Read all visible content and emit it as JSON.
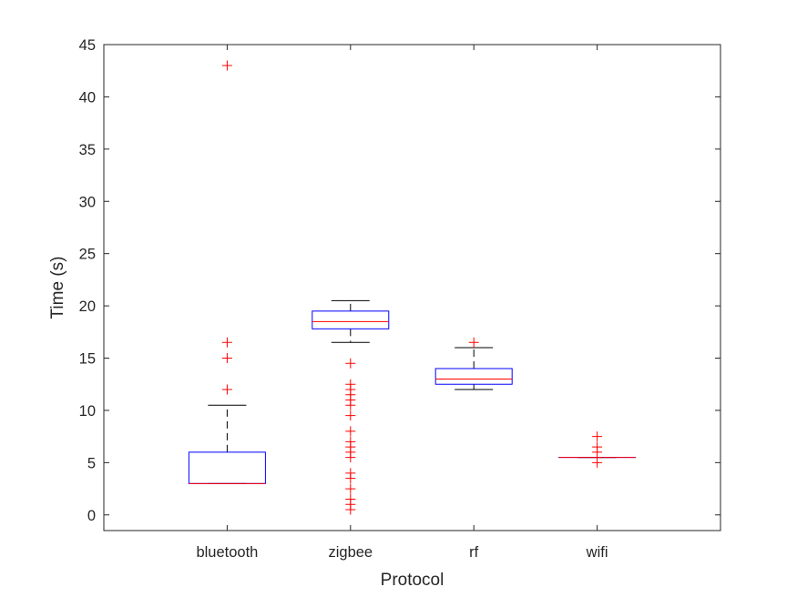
{
  "chart_data": {
    "type": "boxplot",
    "title": "",
    "xlabel": "Protocol",
    "ylabel": "Time (s)",
    "ylim": [
      -1.5,
      45
    ],
    "yticks": [
      0,
      5,
      10,
      15,
      20,
      25,
      30,
      35,
      40,
      45
    ],
    "grid": false,
    "categories": [
      "bluetooth",
      "zigbee",
      "rf",
      "wifi"
    ],
    "colors": {
      "box": "#0000ff",
      "median": "#ff0000",
      "whisker": "#000000",
      "outlier": "#ff0000",
      "axis": "#262626"
    },
    "boxes": [
      {
        "category": "bluetooth",
        "whisker_low": 3.0,
        "q1": 3.0,
        "median": 3.0,
        "q3": 6.0,
        "whisker_high": 10.5,
        "outliers": [
          12.0,
          15.0,
          16.5,
          43.0
        ]
      },
      {
        "category": "zigbee",
        "whisker_low": 16.5,
        "q1": 17.8,
        "median": 18.5,
        "q3": 19.5,
        "whisker_high": 20.5,
        "outliers": [
          0.5,
          1.0,
          1.5,
          2.5,
          3.5,
          4.0,
          5.5,
          6.0,
          6.5,
          7.0,
          8.0,
          9.5,
          10.5,
          11.0,
          11.5,
          12.0,
          12.5,
          14.5
        ]
      },
      {
        "category": "rf",
        "whisker_low": 12.0,
        "q1": 12.5,
        "median": 13.0,
        "q3": 14.0,
        "whisker_high": 16.0,
        "outliers": [
          16.5
        ]
      },
      {
        "category": "wifi",
        "whisker_low": 5.5,
        "q1": 5.5,
        "median": 5.5,
        "q3": 5.5,
        "whisker_high": 5.5,
        "outliers": [
          5.0,
          6.0,
          6.5,
          7.5
        ]
      }
    ]
  }
}
